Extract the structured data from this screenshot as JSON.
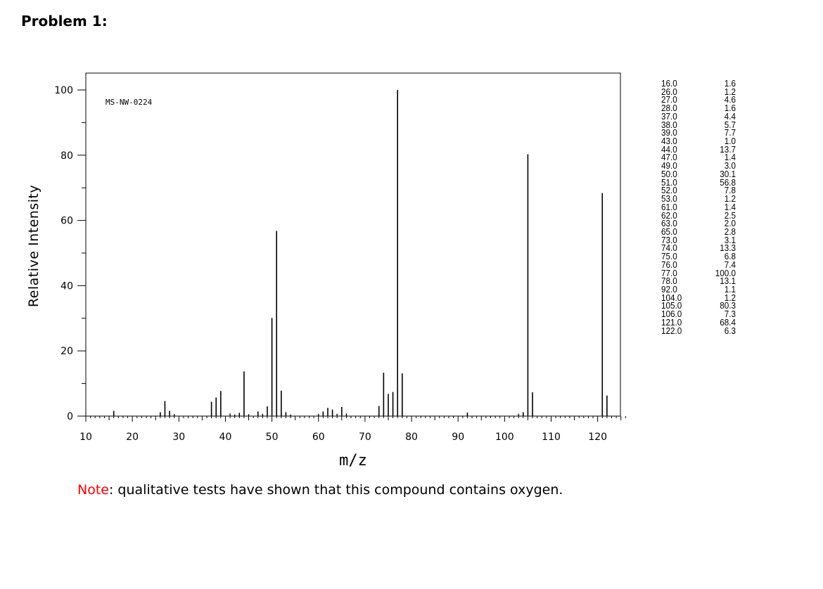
{
  "header": {
    "title": "Problem 1:"
  },
  "chart_data": {
    "type": "bar",
    "code_label": "MS-NW-0224",
    "xlabel": "m/z",
    "ylabel": "Relative Intensity",
    "xlim": [
      10,
      126
    ],
    "ylim": [
      0,
      100
    ],
    "x_ticks": [
      10,
      20,
      30,
      40,
      50,
      60,
      70,
      80,
      90,
      100,
      110,
      120
    ],
    "y_ticks": [
      0,
      20,
      40,
      60,
      80,
      100
    ],
    "peaks": [
      {
        "mz": "16.0",
        "intensity": "1.6"
      },
      {
        "mz": "26.0",
        "intensity": "1.2"
      },
      {
        "mz": "27.0",
        "intensity": "4.6"
      },
      {
        "mz": "28.0",
        "intensity": "1.6"
      },
      {
        "mz": "37.0",
        "intensity": "4.4"
      },
      {
        "mz": "38.0",
        "intensity": "5.7"
      },
      {
        "mz": "39.0",
        "intensity": "7.7"
      },
      {
        "mz": "43.0",
        "intensity": "1.0"
      },
      {
        "mz": "44.0",
        "intensity": "13.7"
      },
      {
        "mz": "47.0",
        "intensity": "1.4"
      },
      {
        "mz": "49.0",
        "intensity": "3.0"
      },
      {
        "mz": "50.0",
        "intensity": "30.1"
      },
      {
        "mz": "51.0",
        "intensity": "56.8"
      },
      {
        "mz": "52.0",
        "intensity": "7.8"
      },
      {
        "mz": "53.0",
        "intensity": "1.2"
      },
      {
        "mz": "61.0",
        "intensity": "1.4"
      },
      {
        "mz": "62.0",
        "intensity": "2.5"
      },
      {
        "mz": "63.0",
        "intensity": "2.0"
      },
      {
        "mz": "65.0",
        "intensity": "2.8"
      },
      {
        "mz": "73.0",
        "intensity": "3.1"
      },
      {
        "mz": "74.0",
        "intensity": "13.3"
      },
      {
        "mz": "75.0",
        "intensity": "6.8"
      },
      {
        "mz": "76.0",
        "intensity": "7.4"
      },
      {
        "mz": "77.0",
        "intensity": "100.0"
      },
      {
        "mz": "78.0",
        "intensity": "13.1"
      },
      {
        "mz": "92.0",
        "intensity": "1.1"
      },
      {
        "mz": "104.0",
        "intensity": "1.2"
      },
      {
        "mz": "105.0",
        "intensity": "80.3"
      },
      {
        "mz": "106.0",
        "intensity": "7.3"
      },
      {
        "mz": "121.0",
        "intensity": "68.4"
      },
      {
        "mz": "122.0",
        "intensity": "6.3"
      }
    ],
    "minor_peaks": [
      {
        "mz": 29,
        "intensity": 0.6
      },
      {
        "mz": 41,
        "intensity": 0.8
      },
      {
        "mz": 42,
        "intensity": 0.5
      },
      {
        "mz": 45,
        "intensity": 0.6
      },
      {
        "mz": 48,
        "intensity": 0.7
      },
      {
        "mz": 54,
        "intensity": 0.5
      },
      {
        "mz": 60,
        "intensity": 0.7
      },
      {
        "mz": 64,
        "intensity": 0.7
      },
      {
        "mz": 66,
        "intensity": 0.8
      },
      {
        "mz": 103,
        "intensity": 0.7
      }
    ]
  },
  "note": {
    "label": "Note",
    "text": ": qualitative tests have shown that this compound contains oxygen."
  }
}
